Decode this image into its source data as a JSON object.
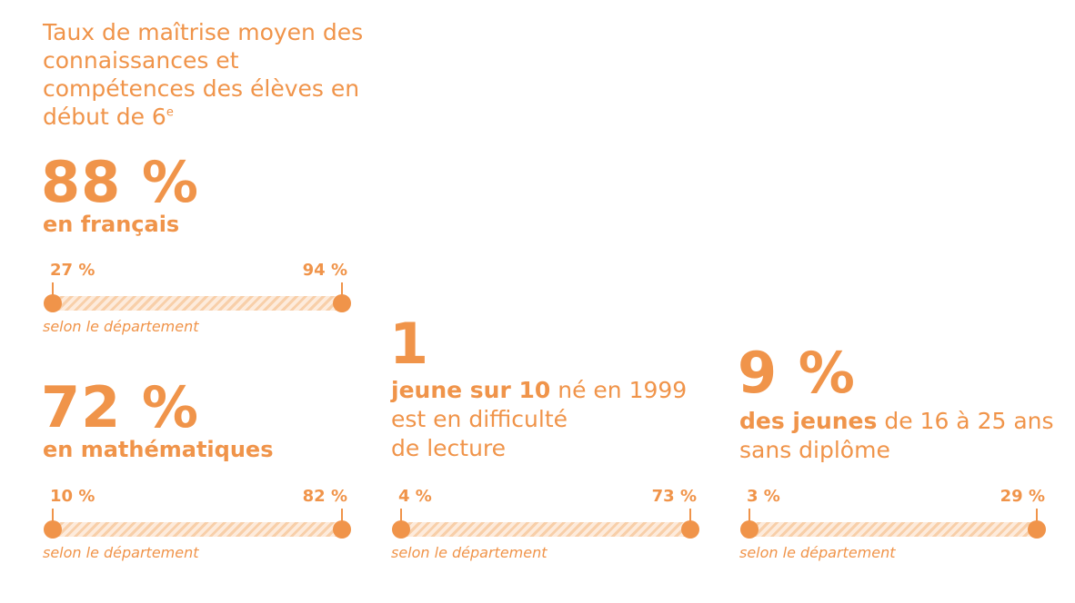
{
  "intro": {
    "title": "Taux de maîtrise moyen des connaissances et compétences des élèves en début de 6",
    "superscript": "e"
  },
  "francais": {
    "value": "88 %",
    "label": "en français",
    "range": {
      "min": "27 %",
      "max": "94 %",
      "note": "selon le département"
    }
  },
  "maths": {
    "value": "72 %",
    "label": "en mathématiques",
    "range": {
      "min": "10 %",
      "max": "82 %",
      "note": "selon le département"
    }
  },
  "lecture": {
    "value": "1",
    "text_bold": "jeune sur 10",
    "text_rest_1": " né en 1999",
    "text_line2": "est en difficulté",
    "text_line3": "de lecture",
    "range": {
      "min": "4 %",
      "max": "73 %",
      "note": "selon le département"
    }
  },
  "diplome": {
    "value": "9 %",
    "text_bold": "des jeunes",
    "text_rest_1": " de 16 à 25 ans",
    "text_line2": "sans diplôme",
    "range": {
      "min": "3 %",
      "max": "29 %",
      "note": "selon le département"
    }
  },
  "colors": {
    "accent": "#F0944A",
    "bar_light": "#FDEBDC",
    "bar_hatch": "#F8CFA9"
  }
}
